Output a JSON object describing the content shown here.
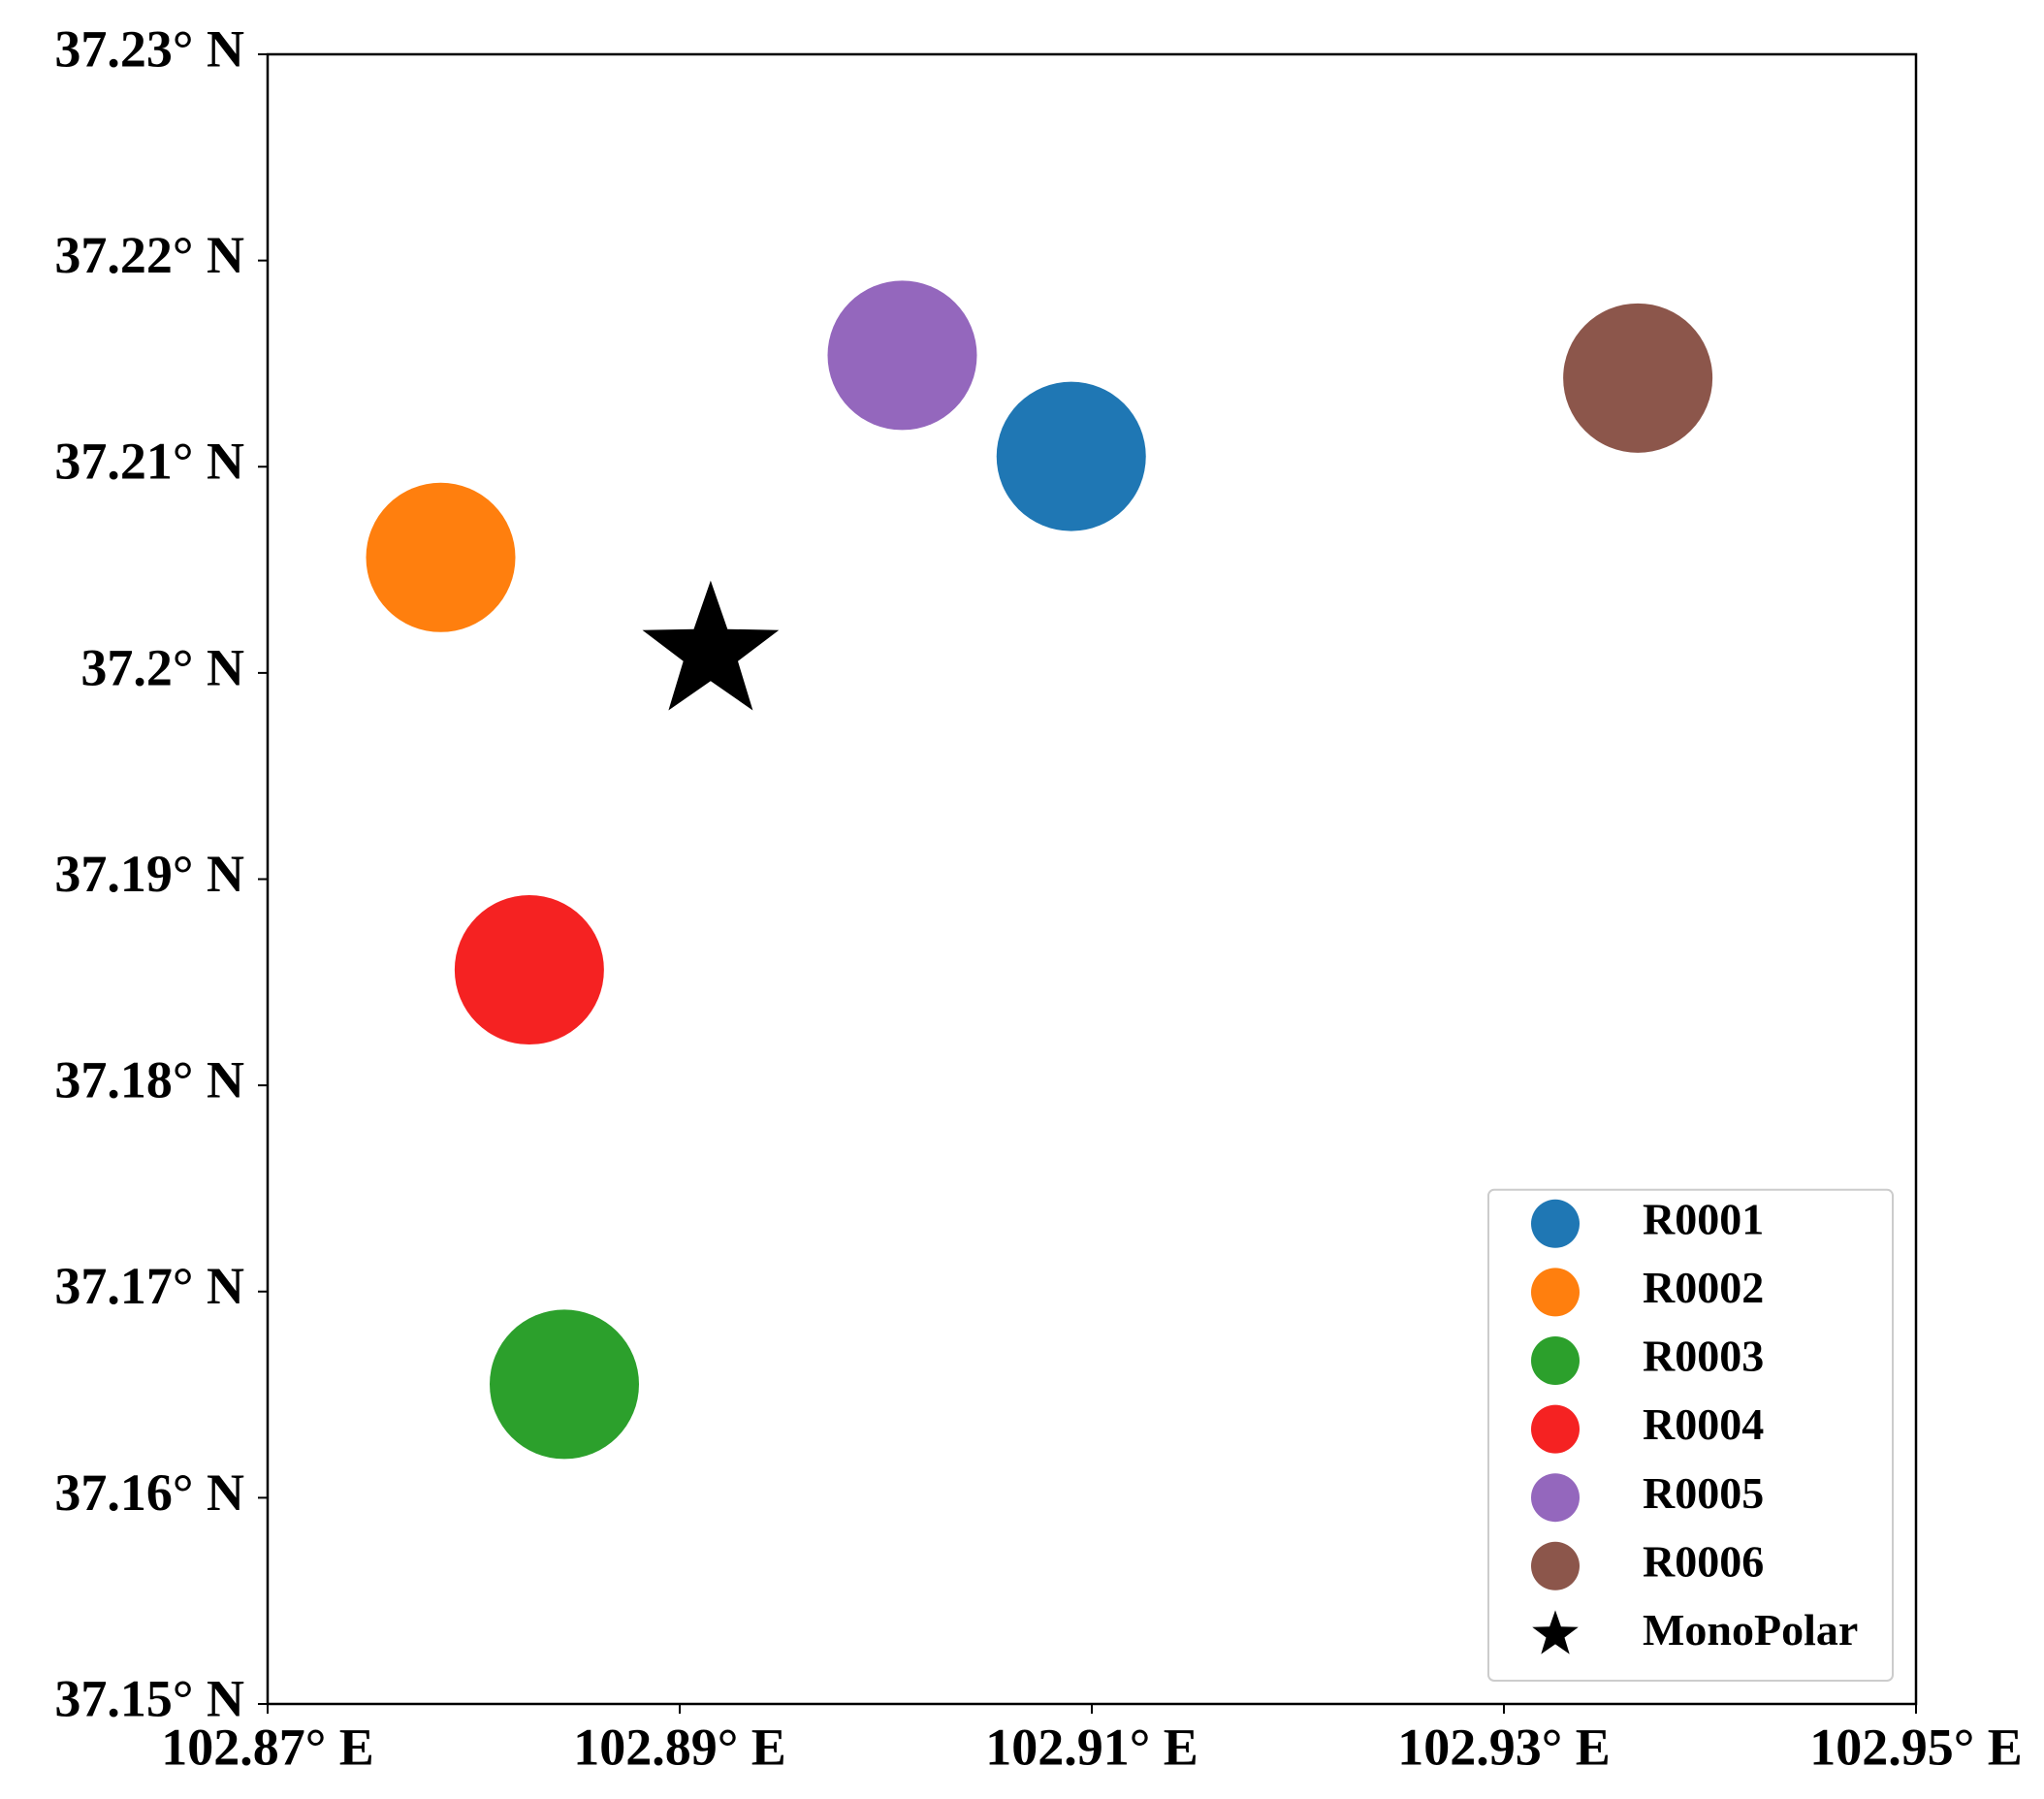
{
  "chart_data": {
    "type": "scatter",
    "xlim": [
      102.87,
      102.95
    ],
    "xticks": [
      {
        "value": 102.87,
        "label": "102.87° E"
      },
      {
        "value": 102.89,
        "label": "102.89° E"
      },
      {
        "value": 102.91,
        "label": "102.91° E"
      },
      {
        "value": 102.93,
        "label": "102.93° E"
      },
      {
        "value": 102.95,
        "label": "102.95° E"
      }
    ],
    "ylim": [
      37.15,
      37.23
    ],
    "yticks": [
      {
        "value": 37.15,
        "label": "37.15° N"
      },
      {
        "value": 37.16,
        "label": "37.16° N"
      },
      {
        "value": 37.17,
        "label": "37.17° N"
      },
      {
        "value": 37.18,
        "label": "37.18° N"
      },
      {
        "value": 37.19,
        "label": "37.19° N"
      },
      {
        "value": 37.2,
        "label": "37.2° N"
      },
      {
        "value": 37.21,
        "label": "37.21° N"
      },
      {
        "value": 37.22,
        "label": "37.22° N"
      },
      {
        "value": 37.23,
        "label": "37.23° N"
      }
    ],
    "grid": false,
    "legend": "lower right",
    "series": [
      {
        "name": "R0001",
        "color": "#1f77b4",
        "marker": "circle",
        "x": [
          102.909
        ],
        "values": [
          37.2105
        ]
      },
      {
        "name": "R0002",
        "color": "#ff7f0e",
        "marker": "circle",
        "x": [
          102.8784
        ],
        "values": [
          37.2056
        ]
      },
      {
        "name": "R0003",
        "color": "#2ca02c",
        "marker": "circle",
        "x": [
          102.8844
        ],
        "values": [
          37.1655
        ]
      },
      {
        "name": "R0004",
        "color": "#f52222",
        "marker": "circle",
        "x": [
          102.8827
        ],
        "values": [
          37.1856
        ]
      },
      {
        "name": "R0005",
        "color": "#9467bd",
        "marker": "circle",
        "x": [
          102.9008
        ],
        "values": [
          37.2154
        ]
      },
      {
        "name": "R0006",
        "color": "#8c564b",
        "marker": "circle",
        "x": [
          102.9365
        ],
        "values": [
          37.2143
        ]
      },
      {
        "name": "MonoPolar",
        "color": "#000000",
        "marker": "star",
        "x": [
          102.8915
        ],
        "values": [
          37.201
        ]
      }
    ]
  }
}
